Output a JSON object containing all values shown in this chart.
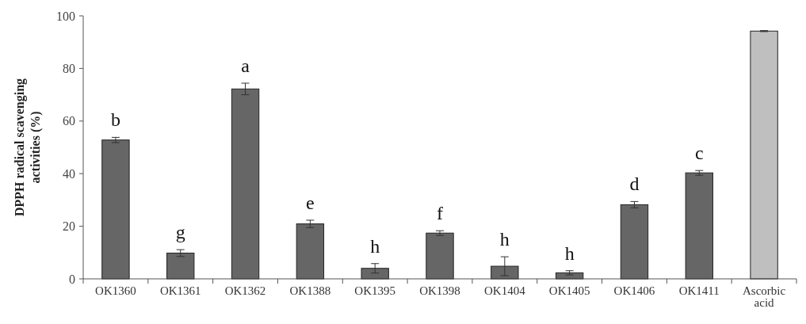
{
  "chart_data": {
    "type": "bar",
    "ylabel": "DPPH radical scavenging activities (%)",
    "categories": [
      "OK1360",
      "OK1361",
      "OK1362",
      "OK1388",
      "OK1395",
      "OK1398",
      "OK1404",
      "OK1405",
      "OK1406",
      "OK1411",
      "Ascorbic acid"
    ],
    "values": [
      52.8,
      9.8,
      72.2,
      20.9,
      4.0,
      17.4,
      4.8,
      2.3,
      28.2,
      40.3,
      94.2
    ],
    "errors": [
      1,
      1.3,
      2.2,
      1.4,
      1.8,
      0.9,
      3.6,
      0.8,
      1.2,
      0.9,
      0.2
    ],
    "colors": [
      "#666666",
      "#666666",
      "#666666",
      "#666666",
      "#666666",
      "#666666",
      "#666666",
      "#666666",
      "#666666",
      "#666666",
      "#bfbfbf"
    ],
    "ylim": [
      0,
      100
    ],
    "yticks": [
      0,
      20,
      40,
      60,
      80,
      100
    ],
    "grid": false,
    "annotations": [
      {
        "text": "b",
        "x": "OK1360",
        "y": 52.8
      },
      {
        "text": "g",
        "x": "OK1361",
        "y": 9.8
      },
      {
        "text": "a",
        "x": "OK1362",
        "y": 72.2
      },
      {
        "text": "e",
        "x": "OK1388",
        "y": 20.9
      },
      {
        "text": "h",
        "x": "OK1395",
        "y": 4.0
      },
      {
        "text": "f",
        "x": "OK1398",
        "y": 17.4
      },
      {
        "text": "h",
        "x": "OK1404",
        "y": 4.8
      },
      {
        "text": "h",
        "x": "OK1405",
        "y": 2.3
      },
      {
        "text": "d",
        "x": "OK1406",
        "y": 28.2
      },
      {
        "text": "c",
        "x": "OK1411",
        "y": 40.3
      }
    ]
  }
}
